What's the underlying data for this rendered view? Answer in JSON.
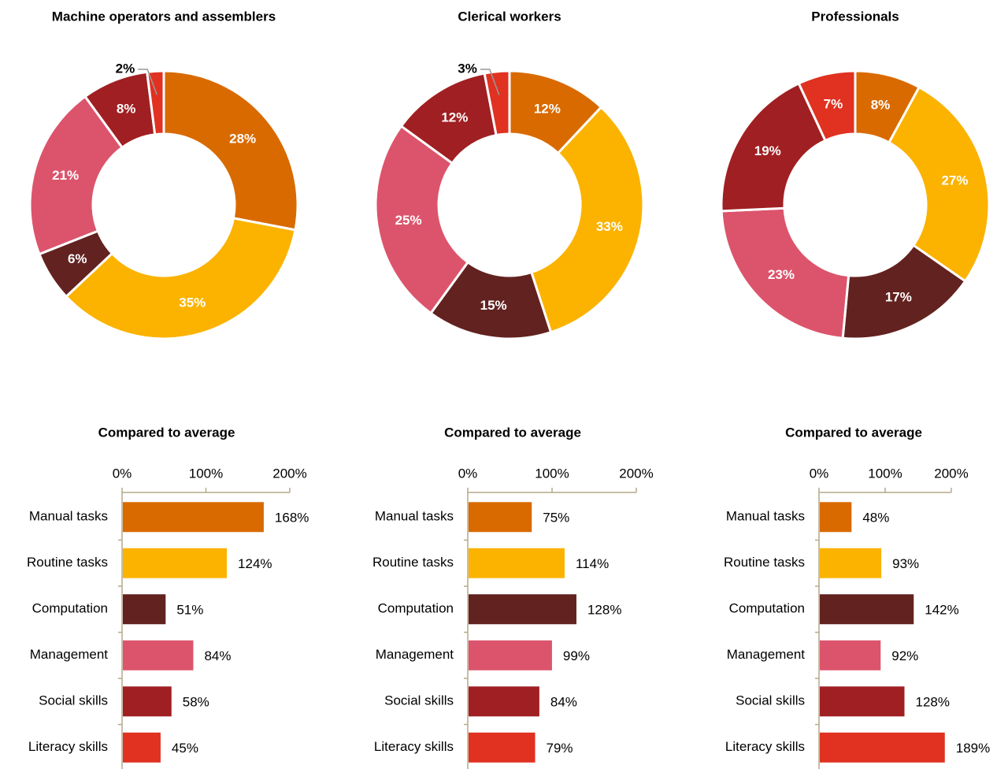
{
  "chart_data": [
    {
      "type": "donut",
      "title": "Machine operators and assemblers",
      "values": [
        28,
        35,
        6,
        21,
        8,
        2
      ],
      "value_labels": [
        "28%",
        "35%",
        "6%",
        "21%",
        "8%",
        "2%"
      ],
      "colors": [
        "#d96a00",
        "#fbb300",
        "#622220",
        "#dc546c",
        "#a01f22",
        "#e03121"
      ]
    },
    {
      "type": "donut",
      "title": "Clerical workers",
      "values": [
        12,
        33,
        15,
        25,
        12,
        3
      ],
      "value_labels": [
        "12%",
        "33%",
        "15%",
        "25%",
        "12%",
        "3%"
      ],
      "colors": [
        "#d96a00",
        "#fbb300",
        "#622220",
        "#dc546c",
        "#a01f22",
        "#e03121"
      ]
    },
    {
      "type": "donut",
      "title": "Professionals",
      "values": [
        8,
        27,
        17,
        23,
        19,
        7
      ],
      "value_labels": [
        "8%",
        "27%",
        "17%",
        "23%",
        "19%",
        "7%"
      ],
      "colors": [
        "#d96a00",
        "#fbb300",
        "#622220",
        "#dc546c",
        "#a01f22",
        "#e03121"
      ]
    },
    {
      "type": "hbar",
      "title": "Compared to average",
      "categories": [
        "Manual tasks",
        "Routine tasks",
        "Computation",
        "Management",
        "Social skills",
        "Literacy skills"
      ],
      "values": [
        168,
        124,
        51,
        84,
        58,
        45
      ],
      "value_labels": [
        "168%",
        "124%",
        "51%",
        "84%",
        "58%",
        "45%"
      ],
      "colors": [
        "#d96a00",
        "#fbb300",
        "#622220",
        "#dc546c",
        "#a01f22",
        "#e03121"
      ],
      "xlim": [
        0,
        200
      ],
      "xticks": [
        {
          "value": 0,
          "label": "0%"
        },
        {
          "value": 100,
          "label": "100%"
        },
        {
          "value": 200,
          "label": "200%"
        }
      ]
    },
    {
      "type": "hbar",
      "title": "Compared to average",
      "categories": [
        "Manual tasks",
        "Routine tasks",
        "Computation",
        "Management",
        "Social skills",
        "Literacy skills"
      ],
      "values": [
        75,
        114,
        128,
        99,
        84,
        79
      ],
      "value_labels": [
        "75%",
        "114%",
        "128%",
        "99%",
        "84%",
        "79%"
      ],
      "colors": [
        "#d96a00",
        "#fbb300",
        "#622220",
        "#dc546c",
        "#a01f22",
        "#e03121"
      ],
      "xlim": [
        0,
        200
      ],
      "xticks": [
        {
          "value": 0,
          "label": "0%"
        },
        {
          "value": 100,
          "label": "100%"
        },
        {
          "value": 200,
          "label": "200%"
        }
      ]
    },
    {
      "type": "hbar",
      "title": "Compared to average",
      "categories": [
        "Manual tasks",
        "Routine tasks",
        "Computation",
        "Management",
        "Social skills",
        "Literacy skills"
      ],
      "values": [
        48,
        93,
        142,
        92,
        128,
        189
      ],
      "value_labels": [
        "48%",
        "93%",
        "142%",
        "92%",
        "128%",
        "189%"
      ],
      "colors": [
        "#d96a00",
        "#fbb300",
        "#622220",
        "#dc546c",
        "#a01f22",
        "#e03121"
      ],
      "xlim": [
        0,
        200
      ],
      "xticks": [
        {
          "value": 0,
          "label": "0%"
        },
        {
          "value": 100,
          "label": "100%"
        },
        {
          "value": 200,
          "label": "200%"
        }
      ]
    }
  ]
}
